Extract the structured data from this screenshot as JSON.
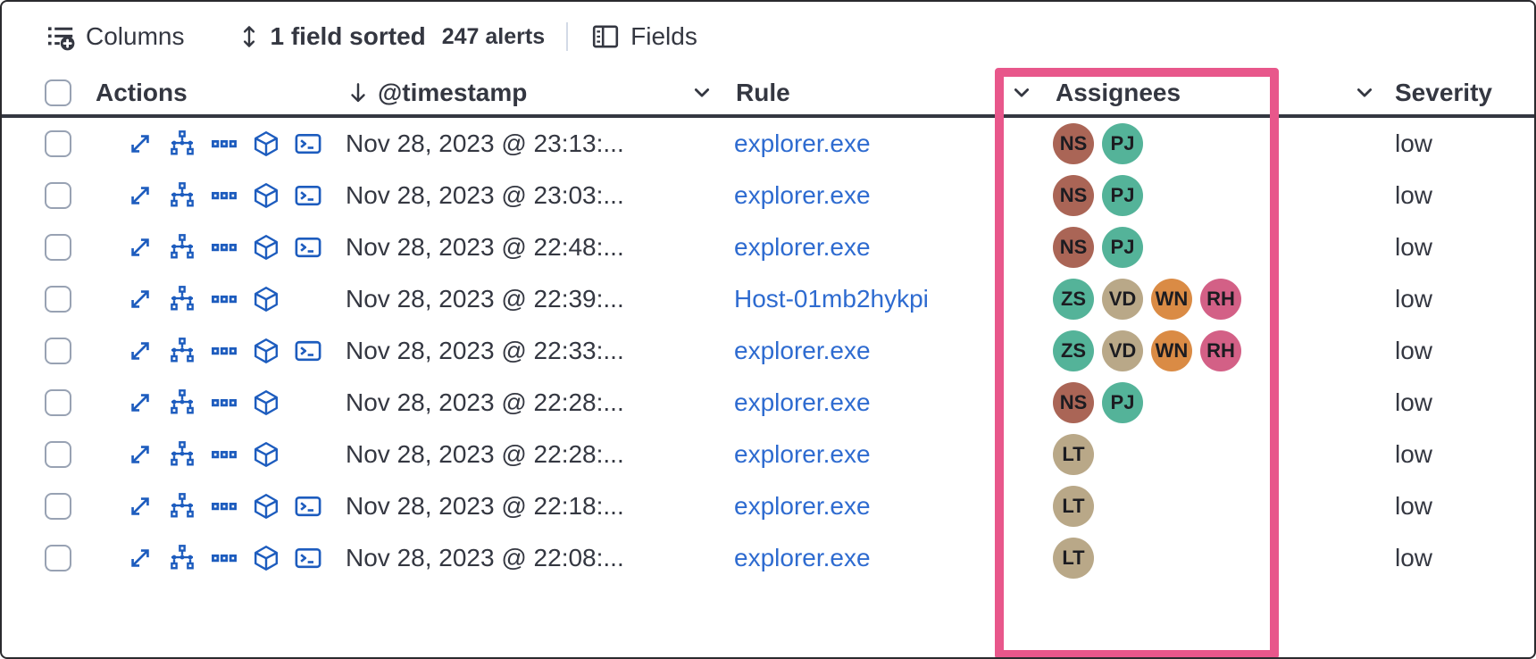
{
  "toolbar": {
    "columns_label": "Columns",
    "sorted_label": "1 field sorted",
    "alerts_count": "247 alerts",
    "fields_label": "Fields"
  },
  "table": {
    "headers": {
      "actions": "Actions",
      "timestamp": "@timestamp",
      "rule": "Rule",
      "assignees": "Assignees",
      "severity": "Severity"
    },
    "rows": [
      {
        "timestamp": "Nov 28, 2023 @ 23:13:...",
        "rule": "explorer.exe",
        "has_console_action": true,
        "assignees": [
          "NS",
          "PJ"
        ],
        "severity": "low"
      },
      {
        "timestamp": "Nov 28, 2023 @ 23:03:...",
        "rule": "explorer.exe",
        "has_console_action": true,
        "assignees": [
          "NS",
          "PJ"
        ],
        "severity": "low"
      },
      {
        "timestamp": "Nov 28, 2023 @ 22:48:...",
        "rule": "explorer.exe",
        "has_console_action": true,
        "assignees": [
          "NS",
          "PJ"
        ],
        "severity": "low"
      },
      {
        "timestamp": "Nov 28, 2023 @ 22:39:...",
        "rule": "Host-01mb2hykpi",
        "has_console_action": false,
        "assignees": [
          "ZS",
          "VD",
          "WN",
          "RH"
        ],
        "severity": "low"
      },
      {
        "timestamp": "Nov 28, 2023 @ 22:33:...",
        "rule": "explorer.exe",
        "has_console_action": true,
        "assignees": [
          "ZS",
          "VD",
          "WN",
          "RH"
        ],
        "severity": "low"
      },
      {
        "timestamp": "Nov 28, 2023 @ 22:28:...",
        "rule": "explorer.exe",
        "has_console_action": false,
        "assignees": [
          "NS",
          "PJ"
        ],
        "severity": "low"
      },
      {
        "timestamp": "Nov 28, 2023 @ 22:28:...",
        "rule": "explorer.exe",
        "has_console_action": false,
        "assignees": [
          "LT"
        ],
        "severity": "low"
      },
      {
        "timestamp": "Nov 28, 2023 @ 22:18:...",
        "rule": "explorer.exe",
        "has_console_action": true,
        "assignees": [
          "LT"
        ],
        "severity": "low"
      },
      {
        "timestamp": "Nov 28, 2023 @ 22:08:...",
        "rule": "explorer.exe",
        "has_console_action": true,
        "assignees": [
          "LT"
        ],
        "severity": "low"
      }
    ]
  },
  "avatar_colors": {
    "NS": "#AA6556",
    "PJ": "#54B399",
    "ZS": "#54B399",
    "VD": "#B9A888",
    "WN": "#DA8B45",
    "RH": "#D36086",
    "LT": "#B9A888"
  },
  "icons": {
    "toolbar": [
      "columns-add-icon",
      "sortable-icon",
      "fields-icon"
    ],
    "row_actions": [
      "expand-icon",
      "analyze-event-icon",
      "more-actions-icon",
      "session-view-cube-icon",
      "console-icon"
    ]
  },
  "colors": {
    "link_blue": "#2e6bd0",
    "action_icon_blue": "#1d5cbe",
    "highlight_pink": "#e8578b",
    "text_dark": "#343741",
    "header_border": "#343741",
    "checkbox_border": "#98a2b3"
  }
}
